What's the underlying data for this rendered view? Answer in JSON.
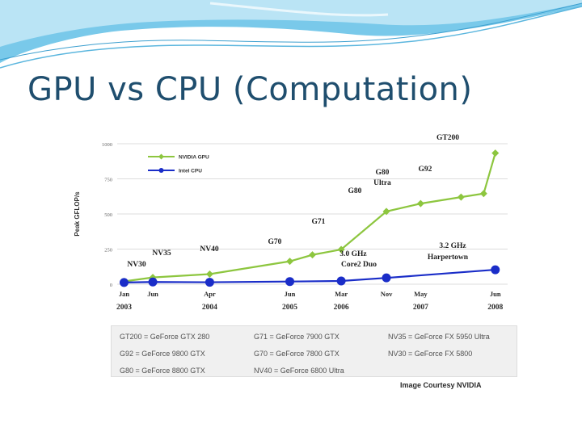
{
  "slide": {
    "title": "GPU vs CPU (Computation)"
  },
  "chart_data": {
    "type": "line",
    "ylabel": "Peak GFLOP/s",
    "ylim": [
      0,
      1000
    ],
    "yticks": [
      0,
      250,
      500,
      750,
      1000
    ],
    "x_range": [
      2002.9,
      2008.6
    ],
    "x_ticks": [
      {
        "month": "Jan",
        "year": "2003",
        "x": 2003.0
      },
      {
        "month": "Jun",
        "year": "",
        "x": 2003.42
      },
      {
        "month": "Apr",
        "year": "2004",
        "x": 2004.25
      },
      {
        "month": "Jun",
        "year": "2005",
        "x": 2005.42
      },
      {
        "month": "Mar",
        "year": "2006",
        "x": 2006.17
      },
      {
        "month": "Nov",
        "year": "",
        "x": 2006.83
      },
      {
        "month": "May",
        "year": "2007",
        "x": 2007.33
      },
      {
        "month": "Jun",
        "year": "2008",
        "x": 2008.42
      }
    ],
    "legend_position": "top-left",
    "grid": true,
    "series": [
      {
        "name": "NVIDIA GPU",
        "color": "#8dc63f",
        "marker": "diamond",
        "points": [
          {
            "x": 2003.0,
            "y": 20
          },
          {
            "x": 2003.42,
            "y": 48
          },
          {
            "x": 2004.25,
            "y": 72
          },
          {
            "x": 2005.42,
            "y": 163
          },
          {
            "x": 2005.75,
            "y": 209
          },
          {
            "x": 2006.17,
            "y": 247
          },
          {
            "x": 2006.83,
            "y": 518
          },
          {
            "x": 2007.33,
            "y": 574
          },
          {
            "x": 2007.92,
            "y": 620
          },
          {
            "x": 2008.25,
            "y": 645
          },
          {
            "x": 2008.42,
            "y": 933
          }
        ]
      },
      {
        "name": "Intel CPU",
        "color": "#1a2dc8",
        "marker": "circle",
        "points": [
          {
            "x": 2003.0,
            "y": 12
          },
          {
            "x": 2003.42,
            "y": 16
          },
          {
            "x": 2004.25,
            "y": 14
          },
          {
            "x": 2005.42,
            "y": 19
          },
          {
            "x": 2006.17,
            "y": 23
          },
          {
            "x": 2006.83,
            "y": 45
          },
          {
            "x": 2008.42,
            "y": 103
          }
        ]
      }
    ],
    "annotations": [
      {
        "text": "NV30",
        "x": 2003.0,
        "y": 45
      },
      {
        "text": "NV35",
        "x": 2003.55,
        "y": 82
      },
      {
        "text": "NV40",
        "x": 2004.25,
        "y": 93
      },
      {
        "text": "G70",
        "x": 2005.42,
        "y": 1
      },
      {
        "text": "G71",
        "x": 2006.17,
        "y": 1
      },
      {
        "text": "G80",
        "x": 2006.83,
        "y": 1
      },
      {
        "text": "G80",
        "x": 2007.33,
        "y": 1
      },
      {
        "text": "Ultra",
        "x": 2007.33,
        "y": 1
      },
      {
        "text": "G92",
        "x": 2008.0,
        "y": 1
      },
      {
        "text": "GT200",
        "x": 2008.42,
        "y": 1
      },
      {
        "text": "3.0 GHz",
        "x": 2006.85,
        "y": 1
      },
      {
        "text": "Core2 Duo",
        "x": 2006.85,
        "y": 1
      },
      {
        "text": "3.2 GHz",
        "x": 2008.4,
        "y": 1
      },
      {
        "text": "Harpertown",
        "x": 2008.4,
        "y": 1
      }
    ]
  },
  "legend_table": [
    "GT200 = GeForce GTX 280",
    "G71 = GeForce 7900 GTX",
    "NV35 = GeForce FX 5950 Ultra",
    "G92 = GeForce 9800 GTX",
    "G70 = GeForce 7800 GTX",
    "NV30 = GeForce FX 5800",
    "G80 = GeForce 8800 GTX",
    "NV40 = GeForce 6800 Ultra",
    ""
  ],
  "credit": "Image Courtesy NVIDIA"
}
